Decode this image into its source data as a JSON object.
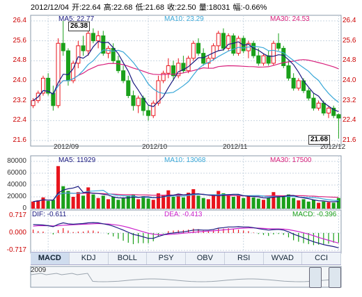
{
  "header": {
    "date": "2012/12/04",
    "open": "开:22.64",
    "high": "高:22.68",
    "low": "低:21.68",
    "close": "收:22.50",
    "volume": "量:18031",
    "change": "幅:-0.66%"
  },
  "price_ma": {
    "ma5": "MA5: 22.77",
    "ma10": "MA10: 23.29",
    "ma30": "MA30: 24.53"
  },
  "volume_ma": {
    "ma5": "MA5: 11929",
    "ma10": "MA10: 13068",
    "ma30": "MA30: 17500"
  },
  "macd_info": {
    "dif": "DIF: -0.611",
    "dea": "DEA: -0.413",
    "macd": "MACD: -0.396"
  },
  "price_axis": [
    "26.4",
    "25.6",
    "24.8",
    "24.0",
    "23.2",
    "22.4",
    "21.6"
  ],
  "volume_axis": [
    "80000",
    "60000",
    "40000",
    "20000",
    "0"
  ],
  "macd_axis": [
    "0.717",
    "0.000",
    "-0.717"
  ],
  "date_labels": [
    "2012/09",
    "2012/10",
    "2012/11",
    "2012/12"
  ],
  "callouts": {
    "high": "26.38",
    "low": "21.68"
  },
  "tabs": [
    "MACD",
    "KDJ",
    "BOLL",
    "PSY",
    "OBV",
    "RSI",
    "WVAD",
    "CCI"
  ],
  "overview": {
    "year": "2009"
  },
  "colors": {
    "up": "#e8141c",
    "down": "#1aa01a",
    "ma5": "#1a1a80",
    "ma10": "#3aa8d8",
    "ma30": "#d8207c",
    "dea": "#cc22cc"
  },
  "chart_data": [
    {
      "type": "candlestick",
      "ylim": [
        21.6,
        26.4
      ],
      "y_ticks": [
        26.4,
        25.6,
        24.8,
        24.0,
        23.2,
        22.4,
        21.6
      ],
      "x_ticks": [
        "2012/09",
        "2012/10",
        "2012/11",
        "2012/12"
      ],
      "candles": [
        [
          23.0,
          23.3,
          22.9,
          23.2
        ],
        [
          23.2,
          23.6,
          23.1,
          23.5
        ],
        [
          23.5,
          24.2,
          23.4,
          24.1
        ],
        [
          24.1,
          24.3,
          23.4,
          23.5
        ],
        [
          23.5,
          23.8,
          22.8,
          23.0
        ],
        [
          23.0,
          25.7,
          22.9,
          25.5
        ],
        [
          25.5,
          26.4,
          25.0,
          25.2
        ],
        [
          25.2,
          25.3,
          23.8,
          24.0
        ],
        [
          24.0,
          24.8,
          23.9,
          24.7
        ],
        [
          24.7,
          25.6,
          24.5,
          25.4
        ],
        [
          25.4,
          25.8,
          25.0,
          25.2
        ],
        [
          25.2,
          26.0,
          25.0,
          25.9
        ],
        [
          25.9,
          26.1,
          25.5,
          25.6
        ],
        [
          25.6,
          26.0,
          25.3,
          25.8
        ],
        [
          25.8,
          26.0,
          25.0,
          25.1
        ],
        [
          25.1,
          25.4,
          24.9,
          25.3
        ],
        [
          25.3,
          25.5,
          24.7,
          24.8
        ],
        [
          24.8,
          25.0,
          24.3,
          24.4
        ],
        [
          24.4,
          24.6,
          23.9,
          24.0
        ],
        [
          24.0,
          24.2,
          23.3,
          23.4
        ],
        [
          23.4,
          23.6,
          22.8,
          23.0
        ],
        [
          23.0,
          23.4,
          22.7,
          23.3
        ],
        [
          23.3,
          23.4,
          22.6,
          22.8
        ],
        [
          22.8,
          23.0,
          22.4,
          22.6
        ],
        [
          22.6,
          23.2,
          22.5,
          23.1
        ],
        [
          23.1,
          24.2,
          23.0,
          24.0
        ],
        [
          24.0,
          24.4,
          23.9,
          24.3
        ],
        [
          24.3,
          24.9,
          24.1,
          24.6
        ],
        [
          24.6,
          24.8,
          24.0,
          24.2
        ],
        [
          24.2,
          24.9,
          24.1,
          24.7
        ],
        [
          24.7,
          25.0,
          24.3,
          24.4
        ],
        [
          24.4,
          25.0,
          24.3,
          24.9
        ],
        [
          24.9,
          25.6,
          24.8,
          25.5
        ],
        [
          25.5,
          25.7,
          25.0,
          25.1
        ],
        [
          25.1,
          25.3,
          24.6,
          24.7
        ],
        [
          24.7,
          25.0,
          24.5,
          24.9
        ],
        [
          24.9,
          25.5,
          24.8,
          25.4
        ],
        [
          25.4,
          26.0,
          25.2,
          25.9
        ],
        [
          25.9,
          26.1,
          25.2,
          25.3
        ],
        [
          25.3,
          25.9,
          25.2,
          25.8
        ],
        [
          25.8,
          25.9,
          25.0,
          25.1
        ],
        [
          25.1,
          25.8,
          25.0,
          25.7
        ],
        [
          25.7,
          25.8,
          25.1,
          25.2
        ],
        [
          25.2,
          25.6,
          24.9,
          25.5
        ],
        [
          25.5,
          25.6,
          24.9,
          25.0
        ],
        [
          25.0,
          25.3,
          24.6,
          24.7
        ],
        [
          24.7,
          25.1,
          24.6,
          25.0
        ],
        [
          25.0,
          25.2,
          24.6,
          24.7
        ],
        [
          24.7,
          25.6,
          24.6,
          25.5
        ],
        [
          25.5,
          25.9,
          25.2,
          25.3
        ],
        [
          25.3,
          25.4,
          24.5,
          24.6
        ],
        [
          24.6,
          24.8,
          24.0,
          24.1
        ],
        [
          24.1,
          24.3,
          23.6,
          23.7
        ],
        [
          23.7,
          24.1,
          23.6,
          24.0
        ],
        [
          24.0,
          24.1,
          23.5,
          23.6
        ],
        [
          23.6,
          23.7,
          23.2,
          23.3
        ],
        [
          23.3,
          23.5,
          22.8,
          22.9
        ],
        [
          22.9,
          23.2,
          22.8,
          23.1
        ],
        [
          23.1,
          23.2,
          22.6,
          22.7
        ],
        [
          22.7,
          23.0,
          22.5,
          22.9
        ],
        [
          22.9,
          23.0,
          22.5,
          22.6
        ],
        [
          22.64,
          22.68,
          21.68,
          22.5
        ]
      ]
    },
    {
      "type": "bar",
      "ylim": [
        0,
        80000
      ],
      "y_ticks": [
        80000,
        60000,
        40000,
        20000,
        0
      ],
      "volumes": [
        12000,
        14000,
        19000,
        13000,
        15000,
        72000,
        38000,
        30000,
        20000,
        28000,
        22000,
        36000,
        24000,
        18000,
        22000,
        16000,
        20000,
        15000,
        18000,
        22000,
        24000,
        16000,
        21000,
        17000,
        15000,
        26000,
        22000,
        31000,
        20000,
        25000,
        19000,
        27000,
        33000,
        22000,
        18000,
        16000,
        24000,
        30000,
        26000,
        22000,
        20000,
        24000,
        18000,
        22000,
        19000,
        17000,
        15000,
        18000,
        28000,
        22000,
        20000,
        24000,
        18000,
        14000,
        16000,
        12000,
        15000,
        10000,
        12000,
        11000,
        10000,
        18031
      ]
    },
    {
      "type": "line",
      "ylim": [
        -0.717,
        0.717
      ],
      "y_ticks": [
        0.717,
        0.0,
        -0.717
      ],
      "dif": [
        0.35,
        0.34,
        0.33,
        0.3,
        0.26,
        0.36,
        0.42,
        0.38,
        0.36,
        0.38,
        0.39,
        0.42,
        0.43,
        0.42,
        0.38,
        0.34,
        0.28,
        0.2,
        0.12,
        0.03,
        -0.06,
        -0.1,
        -0.16,
        -0.22,
        -0.22,
        -0.14,
        -0.08,
        -0.02,
        0.0,
        0.03,
        0.05,
        0.08,
        0.12,
        0.13,
        0.12,
        0.12,
        0.15,
        0.2,
        0.22,
        0.25,
        0.25,
        0.26,
        0.25,
        0.25,
        0.22,
        0.18,
        0.15,
        0.12,
        0.14,
        0.15,
        0.12,
        0.05,
        -0.05,
        -0.12,
        -0.2,
        -0.28,
        -0.36,
        -0.42,
        -0.48,
        -0.52,
        -0.56,
        -0.611
      ],
      "dea": [
        0.28,
        0.3,
        0.3,
        0.3,
        0.29,
        0.3,
        0.32,
        0.33,
        0.34,
        0.35,
        0.36,
        0.37,
        0.38,
        0.39,
        0.38,
        0.37,
        0.35,
        0.32,
        0.28,
        0.23,
        0.17,
        0.11,
        0.05,
        -0.01,
        -0.05,
        -0.07,
        -0.07,
        -0.06,
        -0.05,
        -0.03,
        -0.01,
        0.01,
        0.03,
        0.05,
        0.07,
        0.08,
        0.09,
        0.11,
        0.13,
        0.15,
        0.17,
        0.19,
        0.2,
        0.21,
        0.21,
        0.2,
        0.19,
        0.18,
        0.17,
        0.17,
        0.16,
        0.14,
        0.1,
        0.06,
        0.01,
        -0.05,
        -0.11,
        -0.18,
        -0.24,
        -0.3,
        -0.36,
        -0.413
      ]
    }
  ]
}
